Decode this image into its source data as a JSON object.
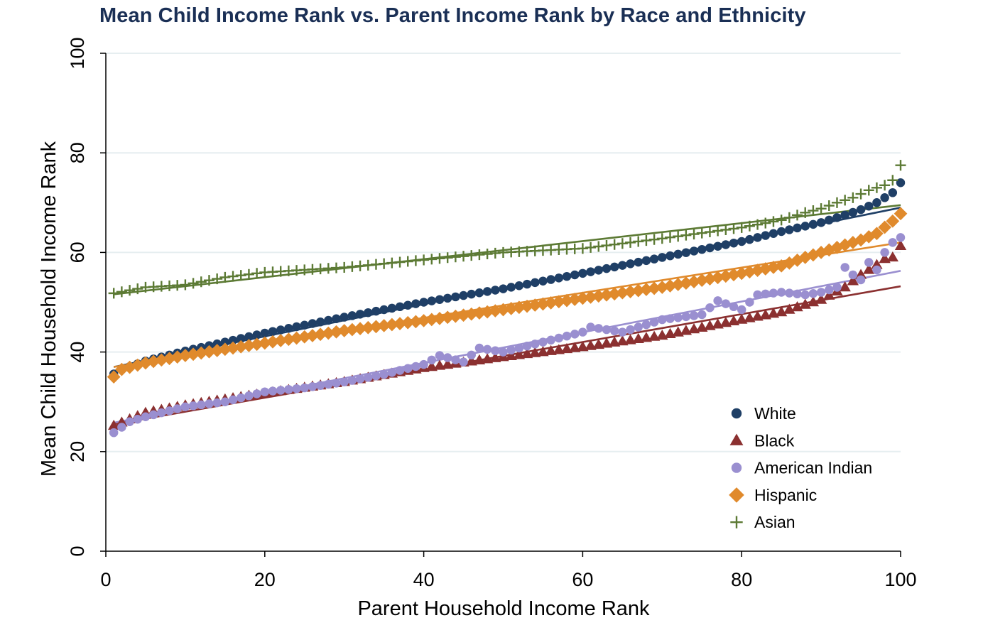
{
  "chart_data": {
    "type": "scatter",
    "title": "Mean Child Income Rank vs. Parent Income Rank by Race and Ethnicity",
    "xlabel": "Parent Household Income Rank",
    "ylabel": "Mean Child Household Income Rank",
    "xlim": [
      0,
      100
    ],
    "ylim": [
      0,
      100
    ],
    "xticks": [
      "0",
      "20",
      "40",
      "60",
      "80",
      "100"
    ],
    "yticks": [
      "0",
      "20",
      "40",
      "60",
      "80",
      "100"
    ],
    "grid": "horizontal",
    "legend_position": "bottom-right",
    "series": [
      {
        "name": "White",
        "marker": "circle",
        "color": "#1f3f66",
        "key_points": [
          [
            1,
            35.6
          ],
          [
            2,
            36.5
          ],
          [
            5,
            38.2
          ],
          [
            10,
            40.2
          ],
          [
            20,
            43.8
          ],
          [
            30,
            47.0
          ],
          [
            40,
            50.0
          ],
          [
            50,
            52.7
          ],
          [
            60,
            55.8
          ],
          [
            70,
            59.0
          ],
          [
            80,
            62.2
          ],
          [
            85,
            64.2
          ],
          [
            90,
            66.0
          ],
          [
            93,
            67.5
          ],
          [
            95,
            68.6
          ],
          [
            97,
            70.0
          ],
          [
            99,
            72.0
          ],
          [
            100,
            74.0
          ]
        ],
        "fit": [
          [
            1,
            37.0
          ],
          [
            100,
            69.0
          ]
        ]
      },
      {
        "name": "Black",
        "marker": "triangle",
        "color": "#8b3030",
        "key_points": [
          [
            1,
            25.2
          ],
          [
            5,
            27.8
          ],
          [
            10,
            29.3
          ],
          [
            20,
            31.7
          ],
          [
            30,
            34.0
          ],
          [
            40,
            36.8
          ],
          [
            50,
            39.0
          ],
          [
            60,
            41.0
          ],
          [
            70,
            43.3
          ],
          [
            80,
            46.5
          ],
          [
            85,
            48.0
          ],
          [
            90,
            50.5
          ],
          [
            93,
            53.0
          ],
          [
            95,
            55.5
          ],
          [
            97,
            57.5
          ],
          [
            98,
            58.7
          ],
          [
            99,
            59.0
          ],
          [
            100,
            61.3
          ]
        ],
        "fit": [
          [
            1,
            25.5
          ],
          [
            100,
            53.2
          ]
        ]
      },
      {
        "name": "American Indian",
        "marker": "circle",
        "color": "#9a8fd0",
        "key_points": [
          [
            1,
            23.8
          ],
          [
            3,
            26.0
          ],
          [
            5,
            27.0
          ],
          [
            10,
            29.0
          ],
          [
            15,
            30.0
          ],
          [
            20,
            32.0
          ],
          [
            25,
            32.8
          ],
          [
            30,
            34.0
          ],
          [
            35,
            35.5
          ],
          [
            40,
            37.5
          ],
          [
            42,
            39.3
          ],
          [
            45,
            38.0
          ],
          [
            47,
            40.8
          ],
          [
            50,
            40.0
          ],
          [
            55,
            42.0
          ],
          [
            60,
            44.0
          ],
          [
            61,
            45.0
          ],
          [
            65,
            44.0
          ],
          [
            70,
            46.5
          ],
          [
            75,
            47.5
          ],
          [
            77,
            50.3
          ],
          [
            80,
            48.5
          ],
          [
            82,
            51.5
          ],
          [
            85,
            52.0
          ],
          [
            88,
            51.5
          ],
          [
            90,
            52.0
          ],
          [
            92,
            53.0
          ],
          [
            93,
            57.0
          ],
          [
            94,
            55.5
          ],
          [
            95,
            54.5
          ],
          [
            96,
            58.0
          ],
          [
            97,
            56.5
          ],
          [
            98,
            60.0
          ],
          [
            99,
            62.0
          ],
          [
            100,
            63.0
          ]
        ],
        "fit": [
          [
            1,
            25.8
          ],
          [
            100,
            56.3
          ]
        ]
      },
      {
        "name": "Hispanic",
        "marker": "diamond",
        "color": "#e08a2c",
        "key_points": [
          [
            1,
            35.0
          ],
          [
            2,
            36.5
          ],
          [
            5,
            37.8
          ],
          [
            10,
            39.3
          ],
          [
            20,
            41.8
          ],
          [
            30,
            44.3
          ],
          [
            40,
            46.3
          ],
          [
            50,
            48.5
          ],
          [
            60,
            50.8
          ],
          [
            70,
            53.0
          ],
          [
            80,
            55.8
          ],
          [
            85,
            57.3
          ],
          [
            88,
            59.0
          ],
          [
            90,
            60.0
          ],
          [
            93,
            61.5
          ],
          [
            95,
            62.5
          ],
          [
            97,
            63.8
          ],
          [
            99,
            66.3
          ],
          [
            100,
            67.8
          ]
        ],
        "fit": [
          [
            1,
            37.0
          ],
          [
            100,
            62.0
          ]
        ]
      },
      {
        "name": "Asian",
        "marker": "plus",
        "color": "#5c7a34",
        "key_points": [
          [
            1,
            51.8
          ],
          [
            5,
            53.0
          ],
          [
            10,
            53.5
          ],
          [
            15,
            55.0
          ],
          [
            20,
            56.0
          ],
          [
            30,
            57.0
          ],
          [
            40,
            58.5
          ],
          [
            50,
            60.0
          ],
          [
            60,
            60.8
          ],
          [
            70,
            62.8
          ],
          [
            80,
            65.0
          ],
          [
            85,
            66.5
          ],
          [
            88,
            68.0
          ],
          [
            90,
            68.8
          ],
          [
            92,
            70.0
          ],
          [
            94,
            71.0
          ],
          [
            96,
            72.5
          ],
          [
            97,
            73.0
          ],
          [
            98,
            73.5
          ],
          [
            99,
            74.5
          ],
          [
            100,
            77.5
          ]
        ],
        "fit": [
          [
            1,
            51.6
          ],
          [
            100,
            69.5
          ]
        ]
      }
    ]
  }
}
